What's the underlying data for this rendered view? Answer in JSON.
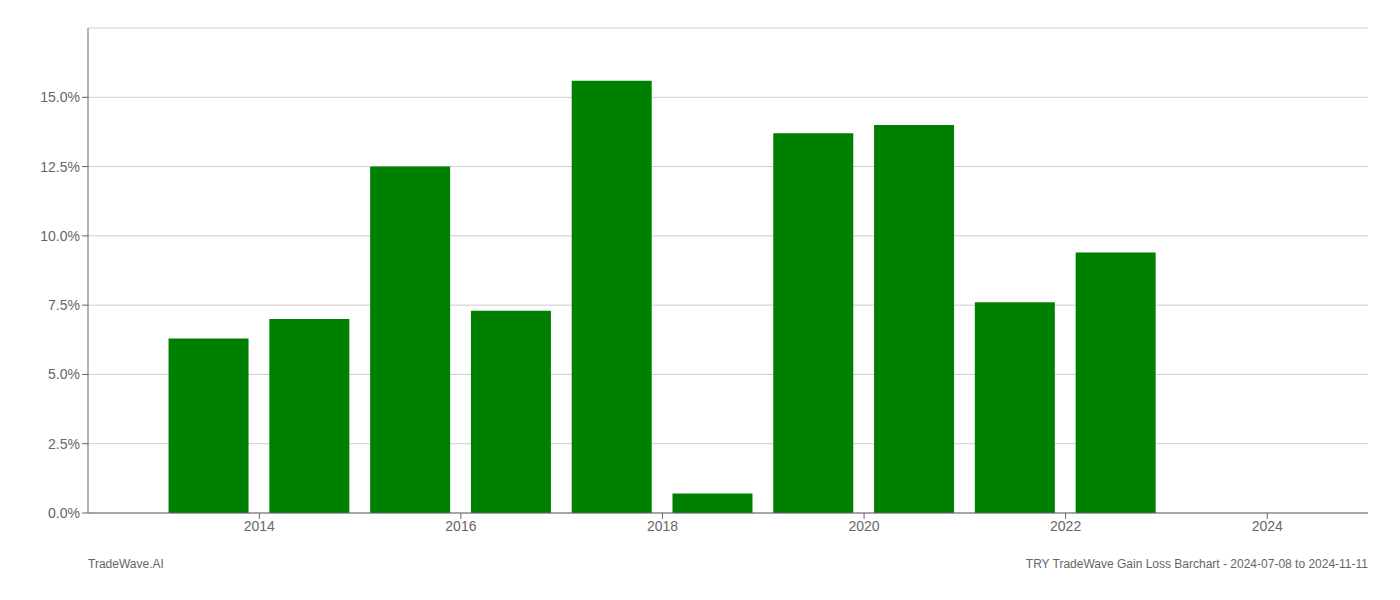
{
  "chart_data": {
    "type": "bar",
    "x": [
      2013.5,
      2014.5,
      2015.5,
      2016.5,
      2017.5,
      2018.5,
      2019.5,
      2020.5,
      2021.5,
      2022.5
    ],
    "values": [
      0.063,
      0.07,
      0.125,
      0.073,
      0.156,
      0.007,
      0.137,
      0.14,
      0.076,
      0.094
    ],
    "color": "#008000",
    "xlim": [
      2012.3,
      2025.0
    ],
    "xticks": [
      2014,
      2016,
      2018,
      2020,
      2022,
      2024
    ],
    "ylim": [
      0.0,
      0.175
    ],
    "yticks": [
      {
        "value": 0.0,
        "label": "0.0%"
      },
      {
        "value": 0.025,
        "label": "2.5%"
      },
      {
        "value": 0.05,
        "label": "5.0%"
      },
      {
        "value": 0.075,
        "label": "7.5%"
      },
      {
        "value": 0.1,
        "label": "10.0%"
      },
      {
        "value": 0.125,
        "label": "12.5%"
      },
      {
        "value": 0.15,
        "label": "15.0%"
      }
    ],
    "grid": true,
    "annotations": [
      "TradeWave.AI",
      "TRY TradeWave Gain Loss Barchart - 2024-07-08 to 2024-11-11"
    ]
  }
}
